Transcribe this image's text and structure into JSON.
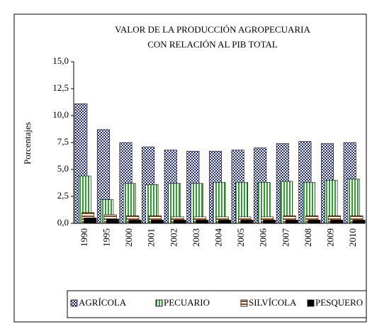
{
  "chart_data": {
    "type": "bar",
    "title": [
      "VALOR DE LA PRODUCCIÓN AGROPECUARIA",
      "CON RELACIÓN AL PIB TOTAL"
    ],
    "y_label": "Porcentajes",
    "categories": [
      "1990",
      "1995",
      "2000",
      "2001",
      "2002",
      "2003",
      "2004",
      "2005",
      "2006",
      "2007",
      "2008",
      "2009",
      "2010"
    ],
    "series": [
      {
        "name": "AGRÍCOLA",
        "color": "#1f2a8c",
        "values": [
          11.1,
          8.7,
          7.5,
          7.1,
          6.8,
          6.7,
          6.7,
          6.8,
          7.0,
          7.4,
          7.6,
          7.4,
          7.5
        ]
      },
      {
        "name": "PECUARIO",
        "color": "#2e9e2e",
        "values": [
          4.4,
          2.2,
          3.7,
          3.6,
          3.7,
          3.7,
          3.8,
          3.8,
          3.8,
          3.9,
          3.8,
          4.0,
          4.1
        ]
      },
      {
        "name": "SILVÍCOLA",
        "color": "#8b4a1a",
        "values": [
          1.0,
          0.8,
          0.7,
          0.7,
          0.6,
          0.6,
          0.6,
          0.6,
          0.6,
          0.7,
          0.7,
          0.7,
          0.7
        ]
      },
      {
        "name": "PESQUERO",
        "color": "#000000",
        "values": [
          0.5,
          0.4,
          0.3,
          0.3,
          0.3,
          0.3,
          0.3,
          0.3,
          0.3,
          0.3,
          0.3,
          0.3,
          0.3
        ]
      }
    ],
    "ylim": [
      0,
      15
    ],
    "yticks": [
      {
        "value": 0,
        "label": "0,0"
      },
      {
        "value": 2.5,
        "label": "2,5"
      },
      {
        "value": 5,
        "label": "5,0"
      },
      {
        "value": 7.5,
        "label": "7,5"
      },
      {
        "value": 10,
        "label": "10,0"
      },
      {
        "value": 12.5,
        "label": "12,5"
      },
      {
        "value": 15,
        "label": "15,0"
      }
    ]
  }
}
